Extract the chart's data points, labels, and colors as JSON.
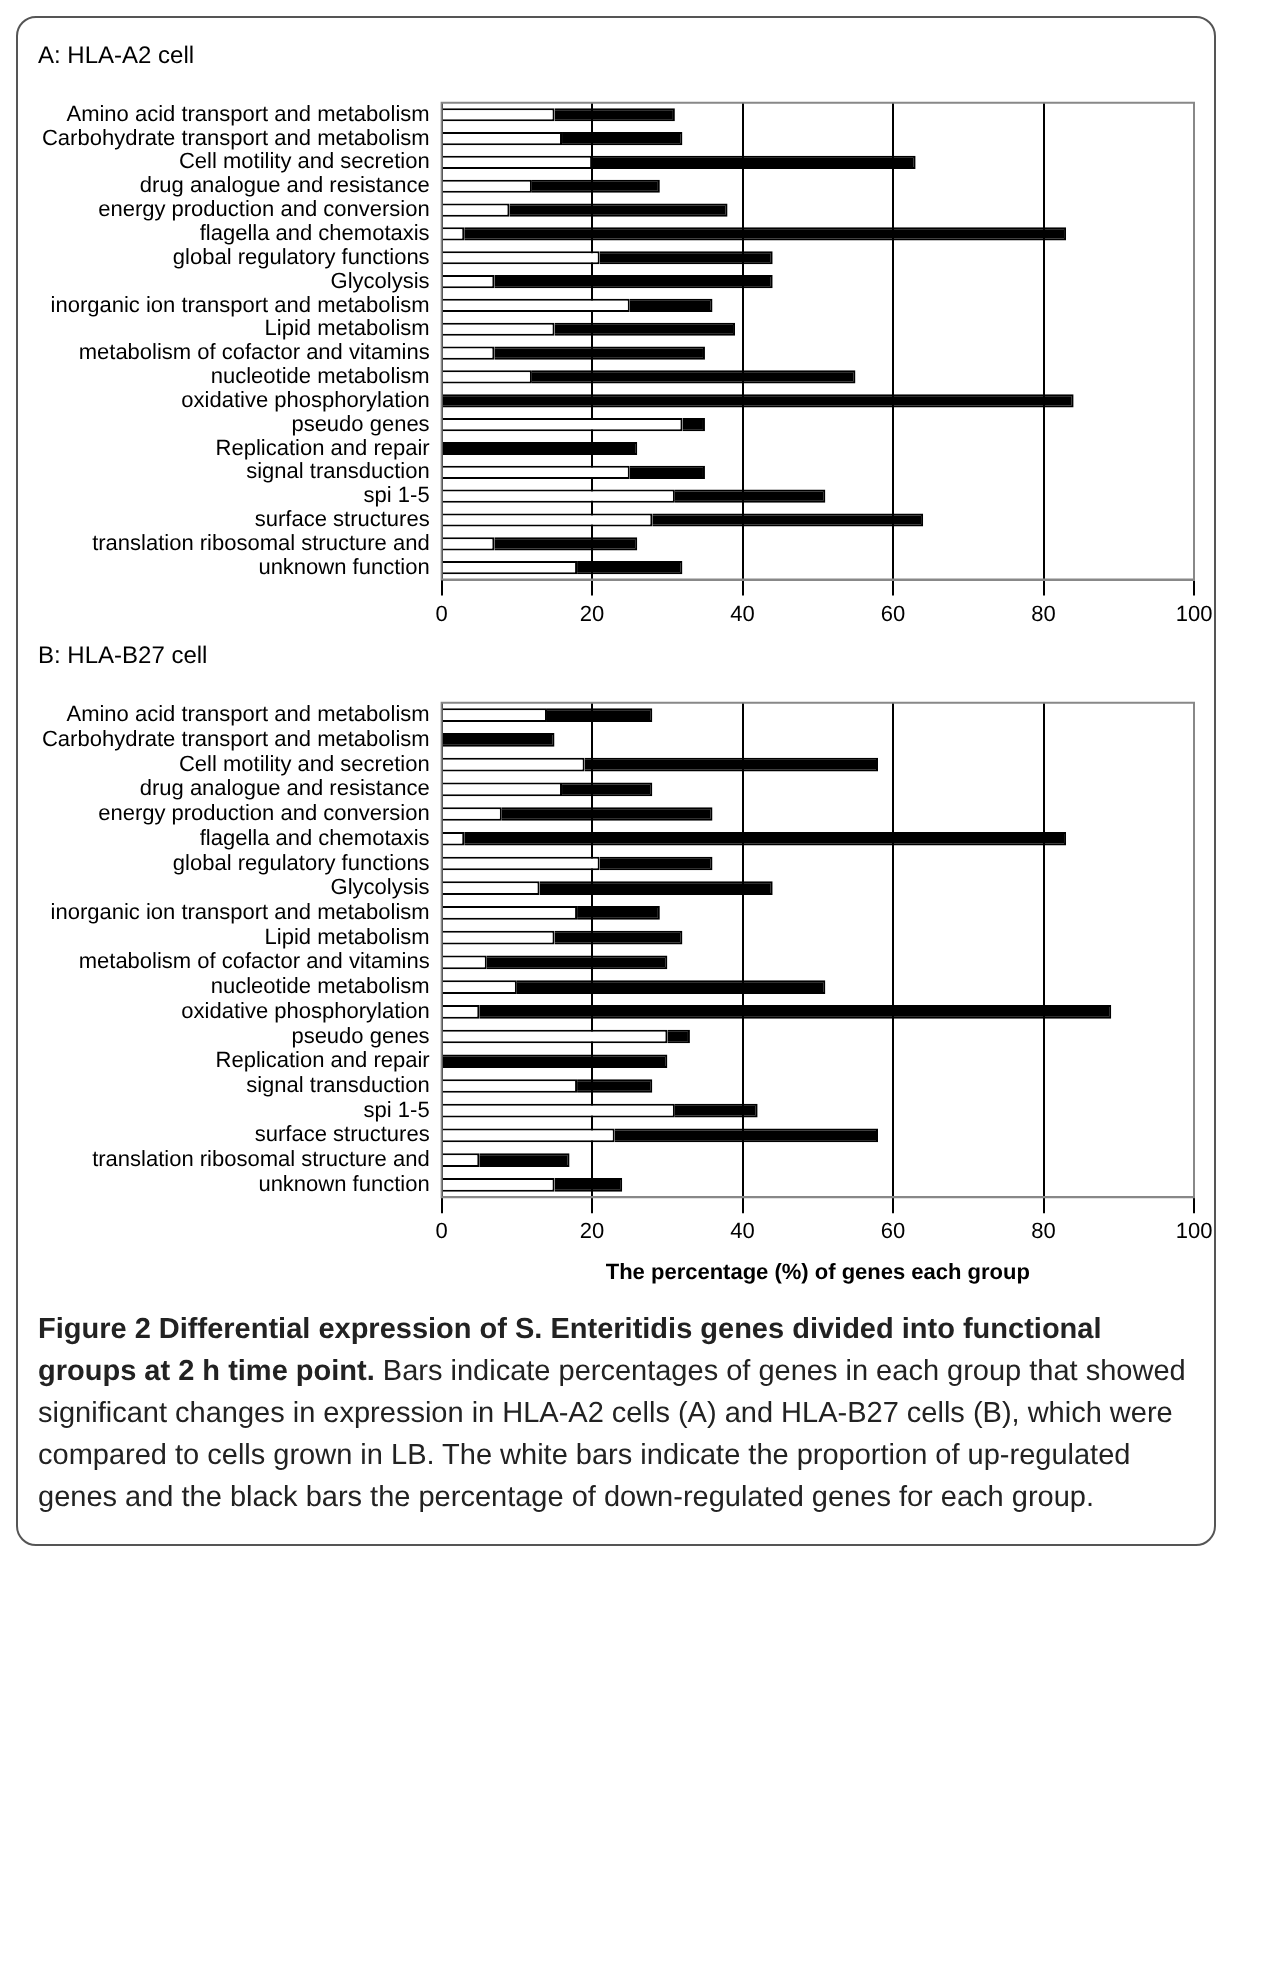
{
  "chart_data": [
    {
      "type": "bar",
      "title": "A: HLA-A2 cell",
      "orientation": "horizontal",
      "stacked": true,
      "grid": "x",
      "categories": [
        "Amino acid transport and metabolism",
        "Carbohydrate transport and metabolism",
        "Cell motility and secretion",
        "drug analogue and resistance",
        "energy production and conversion",
        "flagella and chemotaxis",
        "global regulatory functions",
        "Glycolysis",
        "inorganic ion transport and metabolism",
        "Lipid metabolism",
        "metabolism of cofactor and vitamins",
        "nucleotide metabolism",
        "oxidative phosphorylation",
        "pseudo genes",
        "Replication and repair",
        "signal transduction",
        "spi 1-5",
        "surface structures",
        "translation ribosomal structure and",
        "unknown function"
      ],
      "series": [
        {
          "color": "#ffffff",
          "values": [
            15,
            16,
            20,
            12,
            9,
            3,
            21,
            7,
            25,
            15,
            7,
            12,
            0,
            32,
            0,
            25,
            31,
            28,
            7,
            18
          ]
        },
        {
          "color": "#000000",
          "values": [
            16,
            16,
            43,
            17,
            29,
            80,
            23,
            37,
            11,
            24,
            28,
            43,
            84,
            3,
            26,
            10,
            20,
            36,
            19,
            14
          ]
        }
      ],
      "xlim": [
        0,
        100
      ],
      "xticks": [
        0,
        20,
        40,
        60,
        80,
        100
      ]
    },
    {
      "type": "bar",
      "title": "B: HLA-B27 cell",
      "xlabel": "The percentage (%) of genes each group",
      "orientation": "horizontal",
      "stacked": true,
      "grid": "x",
      "categories": [
        "Amino acid transport and metabolism",
        "Carbohydrate transport and metabolism",
        "Cell motility and secretion",
        "drug analogue and resistance",
        "energy production and conversion",
        "flagella and chemotaxis",
        "global regulatory functions",
        "Glycolysis",
        "inorganic ion transport and metabolism",
        "Lipid metabolism",
        "metabolism of cofactor and vitamins",
        "nucleotide metabolism",
        "oxidative phosphorylation",
        "pseudo genes",
        "Replication and repair",
        "signal transduction",
        "spi 1-5",
        "surface structures",
        "translation ribosomal structure and",
        "unknown function"
      ],
      "series": [
        {
          "color": "#ffffff",
          "values": [
            14,
            0,
            19,
            16,
            8,
            3,
            21,
            13,
            18,
            15,
            6,
            10,
            5,
            30,
            0,
            18,
            31,
            23,
            5,
            15
          ]
        },
        {
          "color": "#000000",
          "values": [
            14,
            15,
            39,
            12,
            28,
            80,
            15,
            31,
            11,
            17,
            24,
            41,
            84,
            3,
            30,
            10,
            11,
            35,
            12,
            9
          ]
        }
      ],
      "xlim": [
        0,
        100
      ],
      "xticks": [
        0,
        20,
        40,
        60,
        80,
        100
      ],
      "annotations": [
        "Figure 2 Differential expression of S. Enteritidis genes divided into functional groups at 2 h time point.",
        "Bars indicate percentages of genes in each group that showed significant changes in expression in HLA-A2 cells (A) and HLA-B27 cells (B), which were compared to cells grown in LB. The white bars indicate the proportion of up-regulated genes and the black bars the percentage of down-regulated genes for each group."
      ]
    }
  ]
}
